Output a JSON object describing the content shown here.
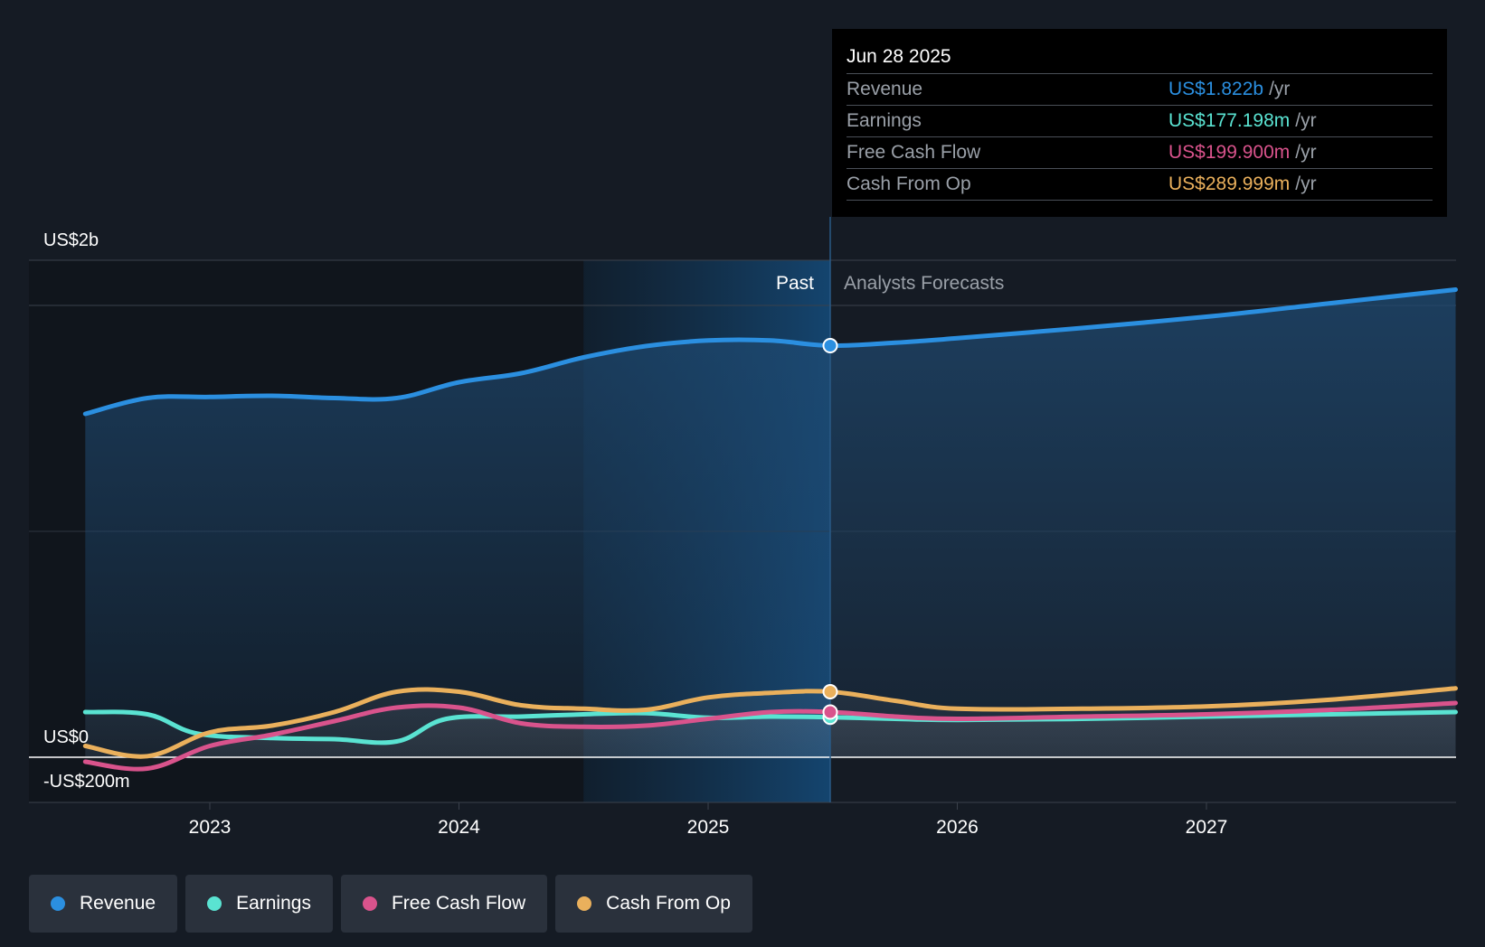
{
  "tooltip": {
    "date": "Jun 28 2025",
    "rows": [
      {
        "label": "Revenue",
        "value": "US$1.822b",
        "unit": "/yr",
        "color": "#2b8fe0"
      },
      {
        "label": "Earnings",
        "value": "US$177.198m",
        "unit": "/yr",
        "color": "#5ae3d2"
      },
      {
        "label": "Free Cash Flow",
        "value": "US$199.900m",
        "unit": "/yr",
        "color": "#d9538c"
      },
      {
        "label": "Cash From Op",
        "value": "US$289.999m",
        "unit": "/yr",
        "color": "#eab05c"
      }
    ]
  },
  "legend": [
    {
      "label": "Revenue",
      "color": "#2b8fe0"
    },
    {
      "label": "Earnings",
      "color": "#5ae3d2"
    },
    {
      "label": "Free Cash Flow",
      "color": "#d9538c"
    },
    {
      "label": "Cash From Op",
      "color": "#eab05c"
    }
  ],
  "chart_data": {
    "type": "line",
    "y_tick_labels": [
      "US$2b",
      "US$0",
      "-US$200m"
    ],
    "x_tick_labels": [
      "2023",
      "2024",
      "2025",
      "2026",
      "2027"
    ],
    "ylim": [
      -200,
      2200
    ],
    "y_unit": "US$m",
    "past_label": "Past",
    "forecast_label": "Analysts Forecasts",
    "past_end": "2025.49",
    "colors": {
      "Revenue": "#2b8fe0",
      "Earnings": "#5ae3d2",
      "Free Cash Flow": "#d9538c",
      "Cash From Op": "#eab05c"
    },
    "series": [
      {
        "name": "Revenue",
        "points": [
          [
            2022.5,
            1520
          ],
          [
            2022.75,
            1590
          ],
          [
            2023.0,
            1595
          ],
          [
            2023.25,
            1600
          ],
          [
            2023.5,
            1590
          ],
          [
            2023.75,
            1590
          ],
          [
            2024.0,
            1660
          ],
          [
            2024.25,
            1700
          ],
          [
            2024.5,
            1770
          ],
          [
            2024.75,
            1820
          ],
          [
            2025.0,
            1845
          ],
          [
            2025.25,
            1845
          ],
          [
            2025.49,
            1822
          ],
          [
            2025.75,
            1835
          ],
          [
            2026.0,
            1855
          ],
          [
            2026.5,
            1900
          ],
          [
            2027.0,
            1950
          ],
          [
            2027.5,
            2010
          ],
          [
            2028.0,
            2070
          ]
        ]
      },
      {
        "name": "Earnings",
        "points": [
          [
            2022.5,
            200
          ],
          [
            2022.75,
            190
          ],
          [
            2022.95,
            105
          ],
          [
            2023.25,
            85
          ],
          [
            2023.5,
            80
          ],
          [
            2023.75,
            70
          ],
          [
            2023.95,
            170
          ],
          [
            2024.25,
            180
          ],
          [
            2024.5,
            190
          ],
          [
            2024.75,
            195
          ],
          [
            2025.0,
            175
          ],
          [
            2025.25,
            180
          ],
          [
            2025.49,
            177
          ],
          [
            2025.75,
            170
          ],
          [
            2026.0,
            165
          ],
          [
            2026.5,
            170
          ],
          [
            2027.0,
            180
          ],
          [
            2027.5,
            190
          ],
          [
            2028.0,
            200
          ]
        ]
      },
      {
        "name": "Free Cash Flow",
        "points": [
          [
            2022.5,
            -20
          ],
          [
            2022.75,
            -50
          ],
          [
            2023.0,
            50
          ],
          [
            2023.25,
            100
          ],
          [
            2023.5,
            160
          ],
          [
            2023.75,
            220
          ],
          [
            2024.0,
            220
          ],
          [
            2024.25,
            150
          ],
          [
            2024.5,
            135
          ],
          [
            2024.75,
            140
          ],
          [
            2025.0,
            170
          ],
          [
            2025.25,
            200
          ],
          [
            2025.49,
            200
          ],
          [
            2025.75,
            180
          ],
          [
            2026.0,
            170
          ],
          [
            2026.5,
            180
          ],
          [
            2027.0,
            190
          ],
          [
            2027.5,
            210
          ],
          [
            2028.0,
            240
          ]
        ]
      },
      {
        "name": "Cash From Op",
        "points": [
          [
            2022.5,
            50
          ],
          [
            2022.75,
            5
          ],
          [
            2023.0,
            110
          ],
          [
            2023.25,
            140
          ],
          [
            2023.5,
            200
          ],
          [
            2023.75,
            290
          ],
          [
            2024.0,
            290
          ],
          [
            2024.25,
            230
          ],
          [
            2024.5,
            215
          ],
          [
            2024.75,
            210
          ],
          [
            2025.0,
            265
          ],
          [
            2025.25,
            285
          ],
          [
            2025.49,
            290
          ],
          [
            2025.75,
            250
          ],
          [
            2026.0,
            215
          ],
          [
            2026.5,
            215
          ],
          [
            2027.0,
            225
          ],
          [
            2027.5,
            255
          ],
          [
            2028.0,
            305
          ]
        ]
      }
    ]
  }
}
